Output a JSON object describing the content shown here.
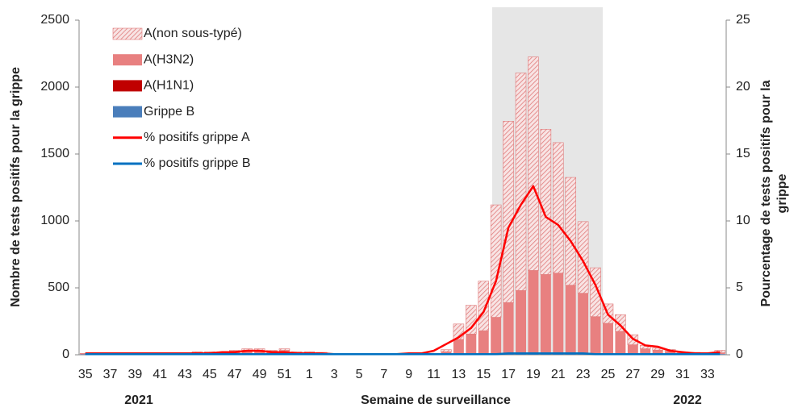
{
  "chart_data": {
    "type": "bar",
    "ylabel": "Nombre de tests positifs pour la grippe",
    "y2label": [
      "Pourcentage de tests positifs pour la",
      "grippe"
    ],
    "xlabel": "Semaine de surveillance",
    "annotations": [
      "2021",
      "2022"
    ],
    "categories": [
      "35",
      null,
      "37",
      null,
      "39",
      null,
      "41",
      null,
      "43",
      null,
      "45",
      null,
      "47",
      null,
      "49",
      null,
      "51",
      null,
      "1",
      null,
      "3",
      null,
      "5",
      null,
      "7",
      null,
      "9",
      null,
      "11",
      null,
      "13",
      null,
      "15",
      null,
      "17",
      null,
      "19",
      null,
      "21",
      null,
      "23",
      null,
      "25",
      null,
      "27",
      null,
      "29",
      null,
      "31",
      null,
      "33",
      null
    ],
    "ylim": [
      0,
      2500
    ],
    "yticks": [
      0,
      500,
      1000,
      1500,
      2000,
      2500
    ],
    "y2lim": [
      0,
      25
    ],
    "y2ticks": [
      0,
      5,
      10,
      15,
      20,
      25
    ],
    "series": [
      {
        "name": "A(non sous-typé)",
        "type": "bar",
        "color": "#e07a7a",
        "hatched": true,
        "values": [
          2,
          2,
          2,
          2,
          2,
          2,
          2,
          2,
          2,
          5,
          5,
          5,
          5,
          12,
          12,
          5,
          12,
          5,
          5,
          5,
          0,
          0,
          0,
          0,
          0,
          0,
          0,
          2,
          3,
          15,
          115,
          215,
          370,
          840,
          1355,
          1625,
          1595,
          1085,
          975,
          805,
          535,
          365,
          145,
          125,
          75,
          25,
          15,
          15,
          7,
          3,
          3,
          18
        ]
      },
      {
        "name": "A(H3N2)",
        "type": "bar",
        "color": "#e88080",
        "values": [
          5,
          5,
          3,
          3,
          3,
          3,
          3,
          3,
          5,
          15,
          15,
          15,
          20,
          25,
          25,
          20,
          30,
          15,
          15,
          10,
          5,
          5,
          5,
          5,
          5,
          5,
          5,
          5,
          5,
          20,
          110,
          150,
          175,
          275,
          380,
          470,
          620,
          590,
          600,
          510,
          450,
          280,
          230,
          170,
          70,
          40,
          30,
          20,
          10,
          10,
          5,
          10
        ]
      },
      {
        "name": "A(H1N1)",
        "type": "bar",
        "color": "#c00000",
        "values": [
          0,
          0,
          0,
          0,
          0,
          0,
          0,
          0,
          0,
          0,
          0,
          0,
          5,
          5,
          5,
          5,
          0,
          0,
          0,
          0,
          0,
          0,
          0,
          0,
          0,
          0,
          0,
          0,
          0,
          0,
          0,
          0,
          0,
          0,
          0,
          0,
          0,
          0,
          0,
          0,
          0,
          0,
          0,
          0,
          0,
          0,
          0,
          0,
          0,
          0,
          0,
          0
        ]
      },
      {
        "name": "Grippe B",
        "type": "bar",
        "color": "#4a7ebb",
        "values": [
          3,
          3,
          3,
          3,
          3,
          3,
          3,
          3,
          3,
          3,
          3,
          3,
          3,
          3,
          3,
          3,
          3,
          3,
          3,
          3,
          3,
          3,
          3,
          3,
          3,
          3,
          3,
          3,
          3,
          3,
          5,
          5,
          5,
          5,
          10,
          10,
          10,
          10,
          10,
          10,
          10,
          5,
          5,
          5,
          5,
          5,
          5,
          5,
          5,
          5,
          5,
          5
        ]
      },
      {
        "name": "% positifs grippe A",
        "type": "line",
        "axis": "y2",
        "color": "#ff0000",
        "values": [
          0.1,
          0.1,
          0.1,
          0.1,
          0.1,
          0.1,
          0.1,
          0.1,
          0.1,
          0.1,
          0.1,
          0.2,
          0.2,
          0.3,
          0.3,
          0.2,
          0.2,
          0.1,
          0.1,
          0.1,
          0.05,
          0.05,
          0.05,
          0.05,
          0.05,
          0.05,
          0.1,
          0.1,
          0.3,
          0.8,
          1.3,
          2.0,
          3.2,
          5.5,
          9.5,
          11.2,
          12.6,
          10.3,
          9.7,
          8.5,
          7.0,
          5.2,
          3.0,
          2.2,
          1.2,
          0.7,
          0.6,
          0.3,
          0.2,
          0.1,
          0.1,
          0.2
        ]
      },
      {
        "name": "% positifs grippe B",
        "type": "line",
        "axis": "y2",
        "color": "#0070c0",
        "values": [
          0.05,
          0.05,
          0.05,
          0.05,
          0.05,
          0.05,
          0.05,
          0.05,
          0.05,
          0.05,
          0.05,
          0.05,
          0.05,
          0.05,
          0.05,
          0.05,
          0.05,
          0.05,
          0.05,
          0.05,
          0.05,
          0.05,
          0.05,
          0.05,
          0.05,
          0.05,
          0.05,
          0.05,
          0.05,
          0.05,
          0.05,
          0.05,
          0.05,
          0.05,
          0.1,
          0.1,
          0.1,
          0.1,
          0.1,
          0.1,
          0.1,
          0.05,
          0.05,
          0.05,
          0.05,
          0.05,
          0.05,
          0.05,
          0.05,
          0.05,
          0.05,
          0.05
        ]
      }
    ]
  }
}
